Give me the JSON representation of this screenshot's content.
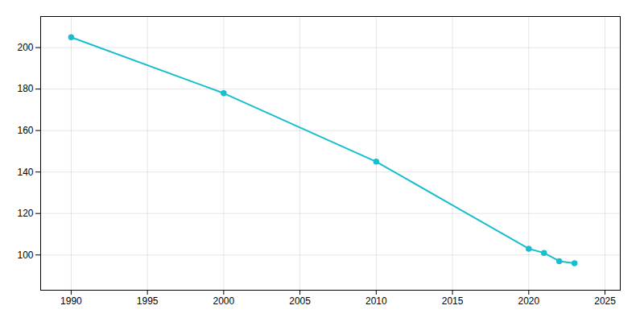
{
  "chart_data": {
    "type": "line",
    "x": [
      1990,
      2000,
      2010,
      2020,
      2021,
      2022,
      2023
    ],
    "values": [
      205,
      178,
      145,
      103,
      101,
      97,
      96
    ],
    "color": "#17becf",
    "marker": "circle",
    "xlim": [
      1988,
      2026
    ],
    "ylim": [
      83,
      215
    ],
    "xticks": [
      1990,
      1995,
      2000,
      2005,
      2010,
      2015,
      2020,
      2025
    ],
    "yticks": [
      100,
      120,
      140,
      160,
      180,
      200
    ],
    "grid": true
  }
}
